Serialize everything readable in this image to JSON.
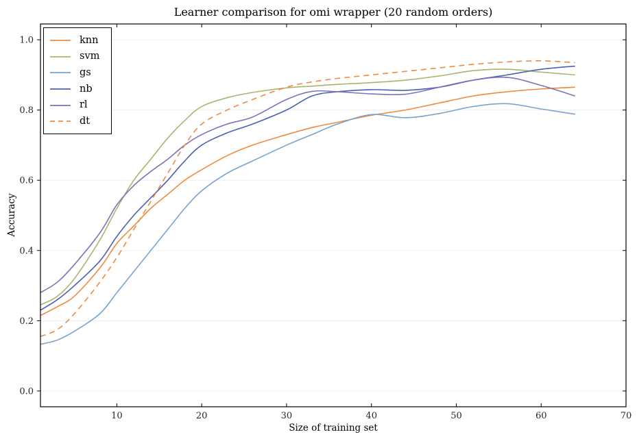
{
  "figure": {
    "background": "#ffffff",
    "frame_color": "#000000",
    "grid_color": "#ededed",
    "tick_label_color": "#262626"
  },
  "chart_data": {
    "type": "line",
    "title": "Learner comparison for omi wrapper (20 random orders)",
    "xlabel": "Size of training set",
    "ylabel": "Accuracy",
    "xlim": [
      1,
      70
    ],
    "ylim": [
      -0.045,
      1.045
    ],
    "xticks": [
      10,
      20,
      30,
      40,
      50,
      60,
      70
    ],
    "yticks": [
      "0.0",
      "0.2",
      "0.4",
      "0.6",
      "0.8",
      "1.0"
    ],
    "grid": "horizontal",
    "legend_position": "upper-left",
    "x": [
      1,
      3,
      5,
      8,
      10,
      12,
      14,
      16,
      18,
      20,
      23,
      26,
      30,
      33,
      36,
      40,
      44,
      48,
      52,
      56,
      60,
      64
    ],
    "series": [
      {
        "name": "knn",
        "color": "#ee8a3e",
        "dash": "solid",
        "values": [
          0.215,
          0.24,
          0.27,
          0.35,
          0.42,
          0.47,
          0.52,
          0.56,
          0.6,
          0.63,
          0.67,
          0.7,
          0.73,
          0.75,
          0.765,
          0.785,
          0.8,
          0.82,
          0.84,
          0.852,
          0.86,
          0.865
        ]
      },
      {
        "name": "svm",
        "color": "#aab46e",
        "dash": "solid",
        "values": [
          0.245,
          0.27,
          0.32,
          0.43,
          0.52,
          0.6,
          0.66,
          0.72,
          0.77,
          0.81,
          0.835,
          0.85,
          0.863,
          0.868,
          0.873,
          0.878,
          0.885,
          0.897,
          0.912,
          0.916,
          0.908,
          0.9
        ]
      },
      {
        "name": "gs",
        "color": "#76a3cf",
        "dash": "solid",
        "values": [
          0.133,
          0.145,
          0.17,
          0.22,
          0.28,
          0.34,
          0.4,
          0.46,
          0.52,
          0.57,
          0.62,
          0.655,
          0.7,
          0.73,
          0.76,
          0.787,
          0.778,
          0.79,
          0.81,
          0.818,
          0.803,
          0.788
        ]
      },
      {
        "name": "nb",
        "color": "#4a5fb4",
        "dash": "solid",
        "values": [
          0.23,
          0.26,
          0.3,
          0.37,
          0.44,
          0.5,
          0.55,
          0.6,
          0.655,
          0.7,
          0.735,
          0.76,
          0.8,
          0.84,
          0.852,
          0.858,
          0.856,
          0.865,
          0.885,
          0.9,
          0.916,
          0.925
        ]
      },
      {
        "name": "rl",
        "color": "#8070b8",
        "dash": "solid",
        "values": [
          0.28,
          0.31,
          0.36,
          0.45,
          0.53,
          0.585,
          0.625,
          0.66,
          0.7,
          0.73,
          0.76,
          0.78,
          0.83,
          0.853,
          0.852,
          0.846,
          0.845,
          0.865,
          0.885,
          0.893,
          0.87,
          0.84
        ]
      },
      {
        "name": "dt",
        "color": "#ee8a3e",
        "dash": "dashed",
        "values": [
          0.155,
          0.175,
          0.22,
          0.31,
          0.38,
          0.46,
          0.54,
          0.62,
          0.7,
          0.76,
          0.8,
          0.83,
          0.865,
          0.88,
          0.89,
          0.9,
          0.91,
          0.92,
          0.93,
          0.937,
          0.94,
          0.935
        ]
      }
    ]
  }
}
